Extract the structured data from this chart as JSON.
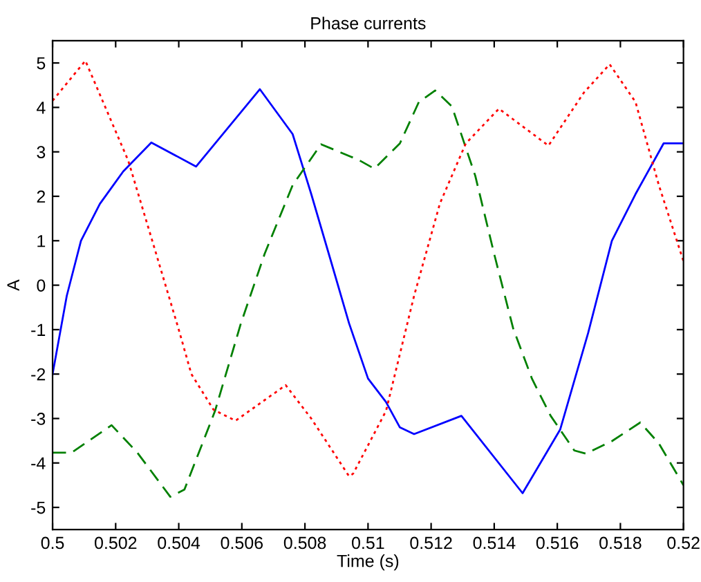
{
  "chart_data": {
    "type": "line",
    "title": "Phase currents",
    "xlabel": "Time (s)",
    "ylabel": "A",
    "xlim": [
      0.5,
      0.52
    ],
    "ylim": [
      -5.5,
      5.5
    ],
    "xticks": [
      0.5,
      0.502,
      0.504,
      0.506,
      0.508,
      0.51,
      0.512,
      0.514,
      0.516,
      0.518,
      0.52
    ],
    "yticks": [
      -5,
      -4,
      -3,
      -2,
      -1,
      0,
      1,
      2,
      3,
      4,
      5
    ],
    "grid": false,
    "legend": false,
    "series": [
      {
        "color": "#0000ff",
        "line_style": "solid",
        "x": [
          0.5,
          0.50045,
          0.5009,
          0.5015,
          0.50224,
          0.50313,
          0.50455,
          0.50657,
          0.50761,
          0.5082,
          0.5088,
          0.5094,
          0.51,
          0.51057,
          0.51101,
          0.51146,
          0.51296,
          0.5149,
          0.51609,
          0.51698,
          0.51773,
          0.51848,
          0.51937,
          0.52
        ],
        "values": [
          -2.0,
          -0.24,
          1.0,
          1.83,
          2.56,
          3.21,
          2.67,
          4.41,
          3.4,
          2.05,
          0.6,
          -0.86,
          -2.1,
          -2.63,
          -3.2,
          -3.35,
          -2.94,
          -4.68,
          -3.25,
          -1.07,
          1.0,
          2.05,
          3.19,
          3.19
        ]
      },
      {
        "color": "#008000",
        "line_style": "dashed",
        "x": [
          0.5,
          0.5006,
          0.50187,
          0.50269,
          0.50373,
          0.50418,
          0.50515,
          0.50597,
          0.50672,
          0.50761,
          0.50851,
          0.5097,
          0.5102,
          0.51101,
          0.51161,
          0.51213,
          0.51266,
          0.5134,
          0.514,
          0.5146,
          0.5152,
          0.51579,
          0.51654,
          0.51691,
          0.51773,
          0.51863,
          0.51922,
          0.52
        ],
        "values": [
          -3.77,
          -3.77,
          -3.15,
          -3.77,
          -4.76,
          -4.6,
          -2.83,
          -0.86,
          0.7,
          2.25,
          3.17,
          2.82,
          2.62,
          3.19,
          4.12,
          4.38,
          4.02,
          2.46,
          0.7,
          -0.97,
          -2.11,
          -2.94,
          -3.72,
          -3.79,
          -3.51,
          -3.09,
          -3.56,
          -4.5
        ]
      },
      {
        "color": "#ff0000",
        "line_style": "dotted",
        "x": [
          0.5,
          0.50104,
          0.5024,
          0.50316,
          0.50358,
          0.504,
          0.5044,
          0.5051,
          0.5058,
          0.50739,
          0.5082,
          0.5094,
          0.50953,
          0.51057,
          0.51146,
          0.51228,
          0.5131,
          0.51415,
          0.51572,
          0.51684,
          0.51766,
          0.51848,
          0.51922,
          0.52
        ],
        "values": [
          4.15,
          5.05,
          2.8,
          1.0,
          0.0,
          -1.0,
          -2.0,
          -2.8,
          -3.05,
          -2.25,
          -3.0,
          -4.3,
          -4.24,
          -2.83,
          -0.24,
          1.84,
          3.19,
          3.97,
          3.14,
          4.33,
          4.97,
          4.12,
          2.25,
          0.54
        ]
      }
    ]
  }
}
